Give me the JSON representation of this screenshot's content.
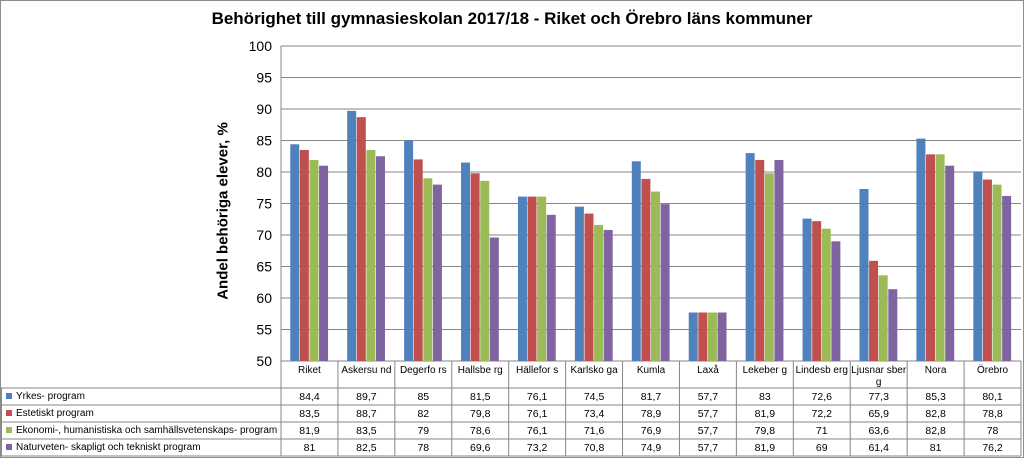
{
  "chart_data": {
    "type": "bar",
    "title": "Behörighet till gymnasieskolan 2017/18 - Riket och Örebro läns kommuner",
    "xlabel": "",
    "ylabel": "Andel behöriga elever, %",
    "ylim": [
      50,
      100
    ],
    "yticks": [
      "50",
      "55",
      "60",
      "65",
      "70",
      "75",
      "80",
      "85",
      "90",
      "95",
      "100"
    ],
    "grid": true,
    "legend": "data-table",
    "categories": [
      "Riket",
      "Askersund",
      "Degerfors",
      "Hallsberg",
      "Hällefors",
      "Karlskoga",
      "Kumla",
      "Laxå",
      "Lekeberg",
      "Lindesberg",
      "Ljusnarsberg",
      "Nora",
      "Örebro"
    ],
    "category_labels": [
      "Riket",
      "Askersu nd",
      "Degerfo rs",
      "Hallsbe rg",
      "Hällefor s",
      "Karlsko ga",
      "Kumla",
      "Laxå",
      "Lekeber g",
      "Lindesb erg",
      "Ljusnar sberg",
      "Nora",
      "Örebro"
    ],
    "series": [
      {
        "name": "Yrkes- program",
        "color": "#4f81bd",
        "values": [
          84.4,
          89.7,
          85,
          81.5,
          76.1,
          74.5,
          81.7,
          57.7,
          83,
          72.6,
          77.3,
          85.3,
          80.1
        ],
        "labels": [
          "84,4",
          "89,7",
          "85",
          "81,5",
          "76,1",
          "74,5",
          "81,7",
          "57,7",
          "83",
          "72,6",
          "77,3",
          "85,3",
          "80,1"
        ]
      },
      {
        "name": "Estetiskt program",
        "color": "#c0504d",
        "values": [
          83.5,
          88.7,
          82,
          79.8,
          76.1,
          73.4,
          78.9,
          57.7,
          81.9,
          72.2,
          65.9,
          82.8,
          78.8
        ],
        "labels": [
          "83,5",
          "88,7",
          "82",
          "79,8",
          "76,1",
          "73,4",
          "78,9",
          "57,7",
          "81,9",
          "72,2",
          "65,9",
          "82,8",
          "78,8"
        ]
      },
      {
        "name": "Ekonomi-, humanistiska och samhällsvetenskaps- program",
        "color": "#9bbb59",
        "values": [
          81.9,
          83.5,
          79,
          78.6,
          76.1,
          71.6,
          76.9,
          57.7,
          79.8,
          71,
          63.6,
          82.8,
          78
        ],
        "labels": [
          "81,9",
          "83,5",
          "79",
          "78,6",
          "76,1",
          "71,6",
          "76,9",
          "57,7",
          "79,8",
          "71",
          "63,6",
          "82,8",
          "78"
        ]
      },
      {
        "name": "Naturveten- skapligt och tekniskt program",
        "color": "#8064a2",
        "values": [
          81,
          82.5,
          78,
          69.6,
          73.2,
          70.8,
          74.9,
          57.7,
          81.9,
          69,
          61.4,
          81,
          76.2
        ],
        "labels": [
          "81",
          "82,5",
          "78",
          "69,6",
          "73,2",
          "70,8",
          "74,9",
          "57,7",
          "81,9",
          "69",
          "61,4",
          "81",
          "76,2"
        ]
      }
    ]
  }
}
